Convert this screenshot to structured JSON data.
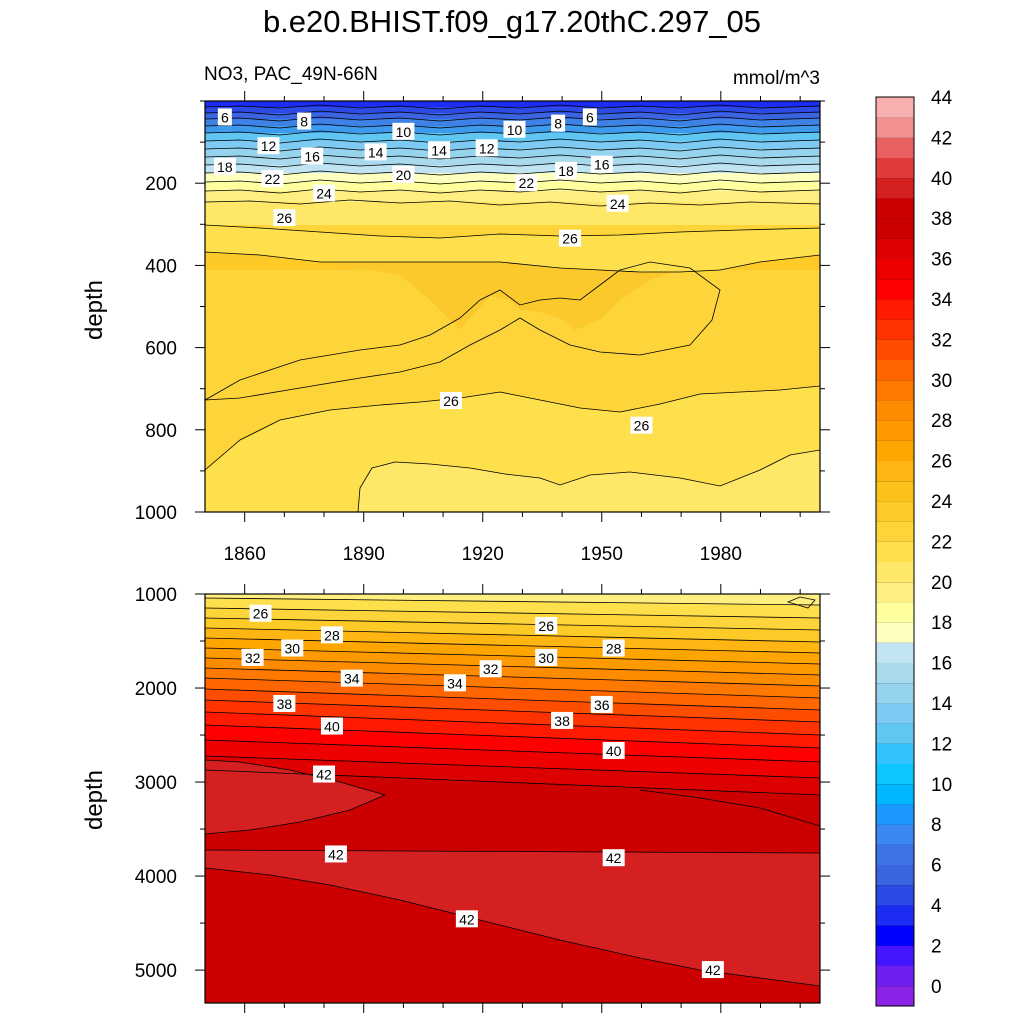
{
  "figure": {
    "title": "b.e20.BHIST.f09_g17.20thC.297_05",
    "subtitle_left": "NO3, PAC_49N-66N",
    "subtitle_right": "mmol/m^3"
  },
  "chart_data": [
    {
      "type": "heatmap",
      "panel": "upper",
      "variable": "NO3",
      "region": "PAC_49N-66N",
      "units": "mmol/m^3",
      "xlabel": "",
      "ylabel": "depth",
      "xlim": [
        1850,
        2005
      ],
      "ylim": [
        1000,
        0
      ],
      "xticks": [
        1860,
        1890,
        1920,
        1950,
        1980
      ],
      "yticks": [
        200,
        400,
        600,
        800,
        1000
      ],
      "contour_levels_shown": [
        6,
        8,
        10,
        12,
        14,
        16,
        18,
        20,
        22,
        24,
        26
      ],
      "contour_labels": [
        {
          "text": "6",
          "x": 1855,
          "depth": 40
        },
        {
          "text": "8",
          "x": 1875,
          "depth": 50
        },
        {
          "text": "10",
          "x": 1900,
          "depth": 75
        },
        {
          "text": "10",
          "x": 1928,
          "depth": 70
        },
        {
          "text": "8",
          "x": 1939,
          "depth": 55
        },
        {
          "text": "6",
          "x": 1947,
          "depth": 40
        },
        {
          "text": "12",
          "x": 1866,
          "depth": 110
        },
        {
          "text": "14",
          "x": 1893,
          "depth": 125
        },
        {
          "text": "14",
          "x": 1909,
          "depth": 120
        },
        {
          "text": "12",
          "x": 1921,
          "depth": 115
        },
        {
          "text": "16",
          "x": 1877,
          "depth": 135
        },
        {
          "text": "16",
          "x": 1950,
          "depth": 155
        },
        {
          "text": "18",
          "x": 1855,
          "depth": 160
        },
        {
          "text": "18",
          "x": 1941,
          "depth": 170
        },
        {
          "text": "20",
          "x": 1900,
          "depth": 180
        },
        {
          "text": "22",
          "x": 1867,
          "depth": 190
        },
        {
          "text": "22",
          "x": 1931,
          "depth": 200
        },
        {
          "text": "24",
          "x": 1880,
          "depth": 225
        },
        {
          "text": "24",
          "x": 1954,
          "depth": 250
        },
        {
          "text": "26",
          "x": 1870,
          "depth": 285
        },
        {
          "text": "26",
          "x": 1942,
          "depth": 335
        },
        {
          "text": "26",
          "x": 1912,
          "depth": 730
        },
        {
          "text": "26",
          "x": 1960,
          "depth": 790
        }
      ]
    },
    {
      "type": "heatmap",
      "panel": "lower",
      "variable": "NO3",
      "region": "PAC_49N-66N",
      "units": "mmol/m^3",
      "xlabel": "",
      "ylabel": "depth",
      "xlim": [
        1850,
        2005
      ],
      "ylim": [
        5350,
        1000
      ],
      "yticks": [
        1000,
        2000,
        3000,
        4000,
        5000
      ],
      "contour_levels_shown": [
        26,
        28,
        30,
        32,
        34,
        36,
        38,
        40,
        42
      ],
      "contour_labels": [
        {
          "text": "26",
          "x": 1864,
          "depth": 1210
        },
        {
          "text": "26",
          "x": 1936,
          "depth": 1340
        },
        {
          "text": "28",
          "x": 1882,
          "depth": 1440
        },
        {
          "text": "28",
          "x": 1953,
          "depth": 1580
        },
        {
          "text": "30",
          "x": 1872,
          "depth": 1580
        },
        {
          "text": "30",
          "x": 1936,
          "depth": 1680
        },
        {
          "text": "32",
          "x": 1862,
          "depth": 1680
        },
        {
          "text": "32",
          "x": 1922,
          "depth": 1800
        },
        {
          "text": "34",
          "x": 1887,
          "depth": 1900
        },
        {
          "text": "34",
          "x": 1913,
          "depth": 1950
        },
        {
          "text": "36",
          "x": 1950,
          "depth": 2180
        },
        {
          "text": "38",
          "x": 1870,
          "depth": 2170
        },
        {
          "text": "38",
          "x": 1940,
          "depth": 2350
        },
        {
          "text": "40",
          "x": 1882,
          "depth": 2410
        },
        {
          "text": "40",
          "x": 1953,
          "depth": 2670
        },
        {
          "text": "42",
          "x": 1880,
          "depth": 2920
        },
        {
          "text": "42",
          "x": 1883,
          "depth": 3770
        },
        {
          "text": "42",
          "x": 1953,
          "depth": 3810
        },
        {
          "text": "42",
          "x": 1916,
          "depth": 4460
        },
        {
          "text": "42",
          "x": 1978,
          "depth": 5000
        }
      ]
    }
  ],
  "colorbar": {
    "tick_labels": [
      "0",
      "2",
      "4",
      "6",
      "8",
      "10",
      "12",
      "14",
      "16",
      "18",
      "20",
      "22",
      "24",
      "26",
      "28",
      "30",
      "32",
      "34",
      "36",
      "38",
      "40",
      "42",
      "44"
    ],
    "colors": [
      "#8c22e6",
      "#6f1ff0",
      "#4515ff",
      "#0000ff",
      "#1c2cf2",
      "#2c4ae5",
      "#3a64e0",
      "#3e73e6",
      "#3c88f2",
      "#1c98ff",
      "#00b6ff",
      "#0ec6ff",
      "#32c3ff",
      "#60c7f2",
      "#7dcaf2",
      "#96d3ee",
      "#a9d9ec",
      "#c1e4f3",
      "#ffffc0",
      "#ffff9e",
      "#ffef80",
      "#ffe767",
      "#fde04c",
      "#fdd53a",
      "#fdca28",
      "#fdc21a",
      "#ffb512",
      "#ffa500",
      "#ff9900",
      "#ff8c00",
      "#ff7800",
      "#ff6600",
      "#ff4d00",
      "#ff3300",
      "#ff1a00",
      "#ff0000",
      "#ee0000",
      "#dd0000",
      "#cc0000",
      "#cc0000",
      "#d42020",
      "#e03c3c",
      "#e86060",
      "#f09090",
      "#f8b0b0"
    ]
  }
}
